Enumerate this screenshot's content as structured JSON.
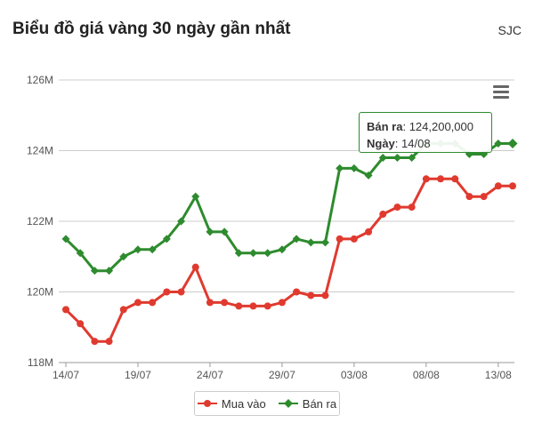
{
  "header": {
    "title": "Biểu đồ giá vàng 30 ngày gần nhất",
    "brand": "SJC"
  },
  "tooltip": {
    "series_label": "Bán ra",
    "value": "124,200,000",
    "date_label": "Ngày",
    "date": "14/08"
  },
  "colors": {
    "mua_vao": "#e03a2f",
    "ban_ra": "#2e8b2e",
    "grid": "#cccccc",
    "axis_text": "#555555"
  },
  "chart_data": {
    "type": "line",
    "title": "Biểu đồ giá vàng 30 ngày gần nhất",
    "x": [
      "14/07",
      "15/07",
      "16/07",
      "17/07",
      "18/07",
      "19/07",
      "20/07",
      "21/07",
      "22/07",
      "23/07",
      "24/07",
      "25/07",
      "26/07",
      "27/07",
      "28/07",
      "29/07",
      "30/07",
      "31/07",
      "01/08",
      "02/08",
      "03/08",
      "04/08",
      "05/08",
      "06/08",
      "07/08",
      "08/08",
      "09/08",
      "10/08",
      "11/08",
      "12/08",
      "13/08",
      "14/08"
    ],
    "x_tick_labels": [
      "14/07",
      "19/07",
      "24/07",
      "29/07",
      "03/08",
      "08/08",
      "13/08"
    ],
    "y_ticks": [
      118,
      120,
      122,
      124,
      126
    ],
    "y_tick_labels": [
      "118M",
      "120M",
      "122M",
      "124M",
      "126M"
    ],
    "ylim": [
      118,
      126
    ],
    "y_unit": "M",
    "grid": true,
    "legend_position": "bottom-center",
    "series": [
      {
        "name": "Mua vào",
        "color": "#e03a2f",
        "marker": "circle",
        "values": [
          119.5,
          119.1,
          118.6,
          118.6,
          119.5,
          119.7,
          119.7,
          120.0,
          120.0,
          120.7,
          119.7,
          119.7,
          119.6,
          119.6,
          119.6,
          119.7,
          120.0,
          119.9,
          119.9,
          121.5,
          121.5,
          121.7,
          122.2,
          122.4,
          122.4,
          123.2,
          123.2,
          123.2,
          122.7,
          122.7,
          123.0,
          123.0
        ]
      },
      {
        "name": "Bán ra",
        "color": "#2e8b2e",
        "marker": "diamond",
        "values": [
          121.5,
          121.1,
          120.6,
          120.6,
          121.0,
          121.2,
          121.2,
          121.5,
          122.0,
          122.7,
          121.7,
          121.7,
          121.1,
          121.1,
          121.1,
          121.2,
          121.5,
          121.4,
          121.4,
          123.5,
          123.5,
          123.3,
          123.8,
          123.8,
          123.8,
          124.2,
          124.2,
          124.2,
          123.9,
          123.9,
          124.2,
          124.2
        ]
      }
    ]
  }
}
